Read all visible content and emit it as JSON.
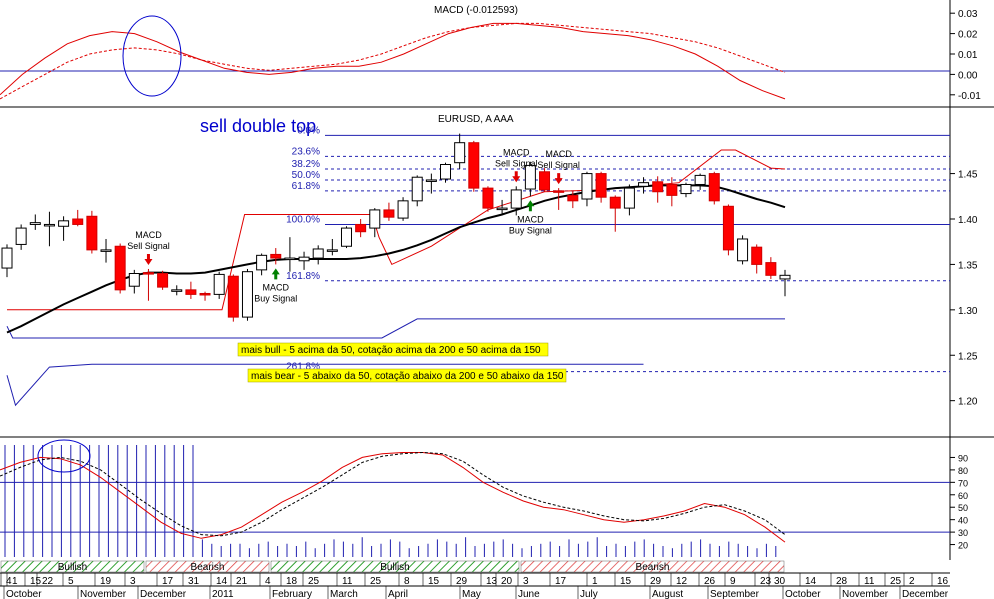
{
  "chart_data": [
    {
      "type": "line",
      "panel": "macd",
      "title": "MACD (-0.012593)",
      "ylim": [
        -0.015,
        0.035
      ],
      "y_ticks": [
        "0.03",
        "0.02",
        "0.01",
        "0.00",
        "-0.01"
      ],
      "y_tick_values": [
        0.03,
        0.02,
        0.01,
        0.0,
        -0.01
      ],
      "zero_line": 0.0,
      "series": [
        {
          "style": "solid",
          "color": "#e00000",
          "values": [
            -0.01,
            0.0,
            0.008,
            0.015,
            0.019,
            0.021,
            0.02,
            0.016,
            0.011,
            0.007,
            0.003,
            0.001,
            0.0,
            0.001,
            0.003,
            0.004,
            0.004,
            0.006,
            0.01,
            0.015,
            0.02,
            0.023,
            0.025,
            0.025,
            0.024,
            0.023,
            0.021,
            0.02,
            0.019,
            0.017,
            0.014,
            0.01,
            0.004,
            -0.003,
            -0.008,
            -0.012
          ]
        },
        {
          "style": "dashed",
          "color": "#e00000",
          "values": [
            -0.012,
            -0.006,
            0.0,
            0.006,
            0.01,
            0.012,
            0.013,
            0.012,
            0.01,
            0.007,
            0.005,
            0.003,
            0.002,
            0.003,
            0.004,
            0.005,
            0.007,
            0.01,
            0.014,
            0.018,
            0.021,
            0.023,
            0.024,
            0.025,
            0.025,
            0.024,
            0.023,
            0.022,
            0.021,
            0.02,
            0.018,
            0.016,
            0.013,
            0.009,
            0.005,
            0.001
          ]
        }
      ],
      "annotation": "blue ellipse around bearish crossover (November)"
    },
    {
      "type": "candlestick",
      "panel": "price",
      "title": "EURUSD, A AAA",
      "annotation_title": "sell double top",
      "ylim": [
        1.16,
        1.52
      ],
      "y_ticks": [
        "1.45",
        "1.40",
        "1.35",
        "1.30",
        "1.25",
        "1.20"
      ],
      "y_tick_values": [
        1.45,
        1.4,
        1.35,
        1.3,
        1.25,
        1.2
      ],
      "candles": [
        {
          "o": 1.346,
          "h": 1.372,
          "l": 1.336,
          "c": 1.368
        },
        {
          "o": 1.372,
          "h": 1.394,
          "l": 1.366,
          "c": 1.39
        },
        {
          "o": 1.394,
          "h": 1.405,
          "l": 1.388,
          "c": 1.396
        },
        {
          "o": 1.394,
          "h": 1.408,
          "l": 1.37,
          "c": 1.394
        },
        {
          "o": 1.392,
          "h": 1.403,
          "l": 1.376,
          "c": 1.398
        },
        {
          "o": 1.4,
          "h": 1.41,
          "l": 1.392,
          "c": 1.394
        },
        {
          "o": 1.403,
          "h": 1.409,
          "l": 1.362,
          "c": 1.366
        },
        {
          "o": 1.366,
          "h": 1.378,
          "l": 1.352,
          "c": 1.366
        },
        {
          "o": 1.37,
          "h": 1.373,
          "l": 1.318,
          "c": 1.322
        },
        {
          "o": 1.326,
          "h": 1.344,
          "l": 1.318,
          "c": 1.34
        },
        {
          "o": 1.341,
          "h": 1.345,
          "l": 1.31,
          "c": 1.34
        },
        {
          "o": 1.34,
          "h": 1.343,
          "l": 1.322,
          "c": 1.325
        },
        {
          "o": 1.322,
          "h": 1.327,
          "l": 1.316,
          "c": 1.322
        },
        {
          "o": 1.322,
          "h": 1.331,
          "l": 1.312,
          "c": 1.317
        },
        {
          "o": 1.318,
          "h": 1.32,
          "l": 1.31,
          "c": 1.317
        },
        {
          "o": 1.317,
          "h": 1.342,
          "l": 1.312,
          "c": 1.339
        },
        {
          "o": 1.337,
          "h": 1.339,
          "l": 1.287,
          "c": 1.292
        },
        {
          "o": 1.292,
          "h": 1.345,
          "l": 1.288,
          "c": 1.342
        },
        {
          "o": 1.344,
          "h": 1.362,
          "l": 1.338,
          "c": 1.36
        },
        {
          "o": 1.361,
          "h": 1.368,
          "l": 1.35,
          "c": 1.357
        },
        {
          "o": 1.357,
          "h": 1.38,
          "l": 1.342,
          "c": 1.357
        },
        {
          "o": 1.354,
          "h": 1.364,
          "l": 1.344,
          "c": 1.358
        },
        {
          "o": 1.357,
          "h": 1.371,
          "l": 1.35,
          "c": 1.367
        },
        {
          "o": 1.366,
          "h": 1.378,
          "l": 1.36,
          "c": 1.366
        },
        {
          "o": 1.37,
          "h": 1.392,
          "l": 1.368,
          "c": 1.39
        },
        {
          "o": 1.394,
          "h": 1.4,
          "l": 1.38,
          "c": 1.386
        },
        {
          "o": 1.39,
          "h": 1.412,
          "l": 1.38,
          "c": 1.41
        },
        {
          "o": 1.41,
          "h": 1.418,
          "l": 1.398,
          "c": 1.402
        },
        {
          "o": 1.401,
          "h": 1.424,
          "l": 1.398,
          "c": 1.42
        },
        {
          "o": 1.42,
          "h": 1.448,
          "l": 1.414,
          "c": 1.446
        },
        {
          "o": 1.443,
          "h": 1.45,
          "l": 1.428,
          "c": 1.443
        },
        {
          "o": 1.444,
          "h": 1.462,
          "l": 1.44,
          "c": 1.46
        },
        {
          "o": 1.462,
          "h": 1.494,
          "l": 1.455,
          "c": 1.484
        },
        {
          "o": 1.484,
          "h": 1.486,
          "l": 1.43,
          "c": 1.434
        },
        {
          "o": 1.434,
          "h": 1.436,
          "l": 1.408,
          "c": 1.412
        },
        {
          "o": 1.412,
          "h": 1.421,
          "l": 1.406,
          "c": 1.412
        },
        {
          "o": 1.412,
          "h": 1.436,
          "l": 1.404,
          "c": 1.432
        },
        {
          "o": 1.433,
          "h": 1.463,
          "l": 1.425,
          "c": 1.459
        },
        {
          "o": 1.452,
          "h": 1.456,
          "l": 1.43,
          "c": 1.432
        },
        {
          "o": 1.431,
          "h": 1.434,
          "l": 1.41,
          "c": 1.43
        },
        {
          "o": 1.426,
          "h": 1.431,
          "l": 1.412,
          "c": 1.42
        },
        {
          "o": 1.422,
          "h": 1.452,
          "l": 1.414,
          "c": 1.45
        },
        {
          "o": 1.45,
          "h": 1.452,
          "l": 1.418,
          "c": 1.424
        },
        {
          "o": 1.424,
          "h": 1.426,
          "l": 1.386,
          "c": 1.412
        },
        {
          "o": 1.412,
          "h": 1.438,
          "l": 1.404,
          "c": 1.434
        },
        {
          "o": 1.436,
          "h": 1.446,
          "l": 1.428,
          "c": 1.44
        },
        {
          "o": 1.441,
          "h": 1.447,
          "l": 1.418,
          "c": 1.43
        },
        {
          "o": 1.438,
          "h": 1.446,
          "l": 1.414,
          "c": 1.426
        },
        {
          "o": 1.428,
          "h": 1.44,
          "l": 1.424,
          "c": 1.438
        },
        {
          "o": 1.438,
          "h": 1.45,
          "l": 1.432,
          "c": 1.448
        },
        {
          "o": 1.45,
          "h": 1.452,
          "l": 1.416,
          "c": 1.42
        },
        {
          "o": 1.414,
          "h": 1.416,
          "l": 1.36,
          "c": 1.366
        },
        {
          "o": 1.354,
          "h": 1.382,
          "l": 1.35,
          "c": 1.378
        },
        {
          "o": 1.369,
          "h": 1.372,
          "l": 1.34,
          "c": 1.35
        },
        {
          "o": 1.352,
          "h": 1.358,
          "l": 1.334,
          "c": 1.338
        },
        {
          "o": 1.334,
          "h": 1.344,
          "l": 1.315,
          "c": 1.338
        }
      ],
      "moving_average": [
        1.275,
        1.282,
        1.29,
        1.298,
        1.306,
        1.313,
        1.32,
        1.327,
        1.333,
        1.338,
        1.341,
        1.341,
        1.34,
        1.34,
        1.341,
        1.344,
        1.347,
        1.35,
        1.353,
        1.355,
        1.356,
        1.356,
        1.356,
        1.356,
        1.356,
        1.357,
        1.359,
        1.362,
        1.366,
        1.371,
        1.377,
        1.384,
        1.391,
        1.396,
        1.401,
        1.405,
        1.41,
        1.415,
        1.42,
        1.424,
        1.427,
        1.43,
        1.432,
        1.434,
        1.435,
        1.436,
        1.437,
        1.437,
        1.437,
        1.437,
        1.436,
        1.432,
        1.427,
        1.422,
        1.418,
        1.413
      ],
      "channel_upper": [
        1.36,
        1.38,
        1.4,
        1.405,
        1.405,
        1.405,
        1.405,
        1.405,
        1.405,
        1.405,
        1.405,
        1.405,
        1.405,
        1.405,
        1.405,
        1.405,
        1.405,
        1.405,
        1.405,
        1.405,
        1.405,
        1.405,
        1.405,
        1.405,
        1.405,
        1.405,
        1.405,
        1.405,
        1.405
      ],
      "channel_upper_x": [
        0,
        1,
        2,
        3,
        4,
        5,
        6,
        7,
        8,
        9,
        10,
        11,
        12,
        13,
        14,
        15,
        16,
        17,
        18,
        19,
        20,
        21,
        22,
        23,
        24,
        25,
        26,
        27,
        28
      ],
      "fibonacci_levels": [
        {
          "label": "0.0%",
          "value": 1.492
        },
        {
          "label": "23.6%",
          "value": 1.469
        },
        {
          "label": "38.2%",
          "value": 1.455
        },
        {
          "label": "50.0%",
          "value": 1.443
        },
        {
          "label": "61.8%",
          "value": 1.431
        },
        {
          "label": "100.0%",
          "value": 1.394
        },
        {
          "label": "161.8%",
          "value": 1.332
        },
        {
          "label": "261.8%",
          "value": 1.232
        }
      ],
      "signals": [
        {
          "label": [
            "MACD",
            "Sell Signal"
          ],
          "type": "sell",
          "candle": 10
        },
        {
          "label": [
            "MACD",
            "Buy Signal"
          ],
          "type": "buy",
          "candle": 19
        },
        {
          "label": [
            "MACD",
            "Sell Signal"
          ],
          "type": "sell",
          "candle": 39
        },
        {
          "label": [
            "MACD",
            "Sell Signal"
          ],
          "type": "sell",
          "candle": 36
        },
        {
          "label": [
            "MACD",
            "Buy Signal"
          ],
          "type": "buy",
          "candle": 37
        }
      ],
      "notes": [
        {
          "text": "mais bull - 5 acima da 50, cotação acima da 200 e 50 acima da 150",
          "background": "#ffff00"
        },
        {
          "text": "mais bear - 5 abaixo da 50, cotação abaixo da 200 e 50 abaixo da 150",
          "background": "#ffff00"
        }
      ]
    },
    {
      "type": "line",
      "panel": "stochastic",
      "ylim": [
        10,
        100
      ],
      "y_ticks": [
        "90",
        "80",
        "70",
        "60",
        "50",
        "40",
        "30",
        "20"
      ],
      "y_tick_values": [
        90,
        80,
        70,
        60,
        50,
        40,
        30,
        20
      ],
      "reference_lines": [
        70,
        30
      ],
      "series": [
        {
          "style": "solid",
          "color": "#e00000",
          "values": [
            80,
            86,
            90,
            89,
            84,
            74,
            62,
            50,
            38,
            29,
            25,
            28,
            34,
            44,
            54,
            62,
            71,
            82,
            90,
            93,
            94,
            94,
            92,
            82,
            70,
            62,
            55,
            50,
            48,
            44,
            40,
            38,
            40,
            43,
            47,
            53,
            50,
            44,
            34,
            22
          ]
        },
        {
          "style": "dashed",
          "color": "#000000",
          "values": [
            75,
            82,
            88,
            90,
            87,
            80,
            68,
            56,
            45,
            35,
            28,
            27,
            30,
            38,
            48,
            57,
            66,
            76,
            86,
            91,
            93,
            94,
            93,
            87,
            76,
            66,
            59,
            54,
            50,
            47,
            43,
            40,
            39,
            41,
            45,
            50,
            52,
            47,
            40,
            28
          ]
        }
      ],
      "regime_bar": [
        {
          "label": "Bullish",
          "type": "bullish"
        },
        {
          "label": "Bearish",
          "type": "bearish"
        },
        {
          "label": "Bullish",
          "type": "bullish"
        },
        {
          "label": "Bearish",
          "type": "bearish"
        }
      ],
      "volume_values": [
        40,
        40,
        40,
        40,
        40,
        40,
        40,
        40,
        40,
        40,
        40,
        40,
        40,
        40,
        40,
        40,
        40,
        40,
        40,
        40,
        40,
        8,
        6,
        5,
        6,
        6,
        4,
        6,
        7,
        5,
        6,
        5,
        7,
        4,
        6,
        8,
        7,
        6,
        9,
        5,
        6,
        8,
        7,
        4,
        5,
        6,
        8,
        7,
        6,
        9,
        5,
        6,
        7,
        8,
        6,
        4,
        5,
        6,
        7,
        5,
        8,
        6,
        7,
        9,
        5,
        6,
        5,
        7,
        8,
        6,
        5,
        4,
        6,
        7,
        8,
        6,
        5,
        7,
        6,
        5,
        4,
        6,
        5
      ],
      "annotation": "blue ellipse around the early-October peak"
    }
  ],
  "x_axis": {
    "day_ticks": [
      "4",
      "1",
      "15",
      "22",
      "5",
      "19",
      "3",
      "17",
      "31",
      "14",
      "21",
      "4",
      "18",
      "25",
      "11",
      "25",
      "8",
      "15",
      "29",
      "13",
      "20",
      "3",
      "17",
      "1",
      "15",
      "29",
      "12",
      "26",
      "9",
      "23",
      "30",
      "14",
      "28",
      "11",
      "25",
      "2",
      "16"
    ],
    "month_labels": [
      "October",
      "November",
      "December",
      "2011",
      "February",
      "March",
      "April",
      "May",
      "June",
      "July",
      "August",
      "September",
      "October",
      "November",
      "December"
    ]
  },
  "colors": {
    "bearish_candle": "#ff0000",
    "bullish_candle": "#ffffff",
    "fib_line": "#2020b0",
    "ma_line": "#000000",
    "ellipse": "#0000cc",
    "buy_arrow": "#008000",
    "sell_arrow": "#e00000",
    "title_blue": "#0000cc"
  }
}
